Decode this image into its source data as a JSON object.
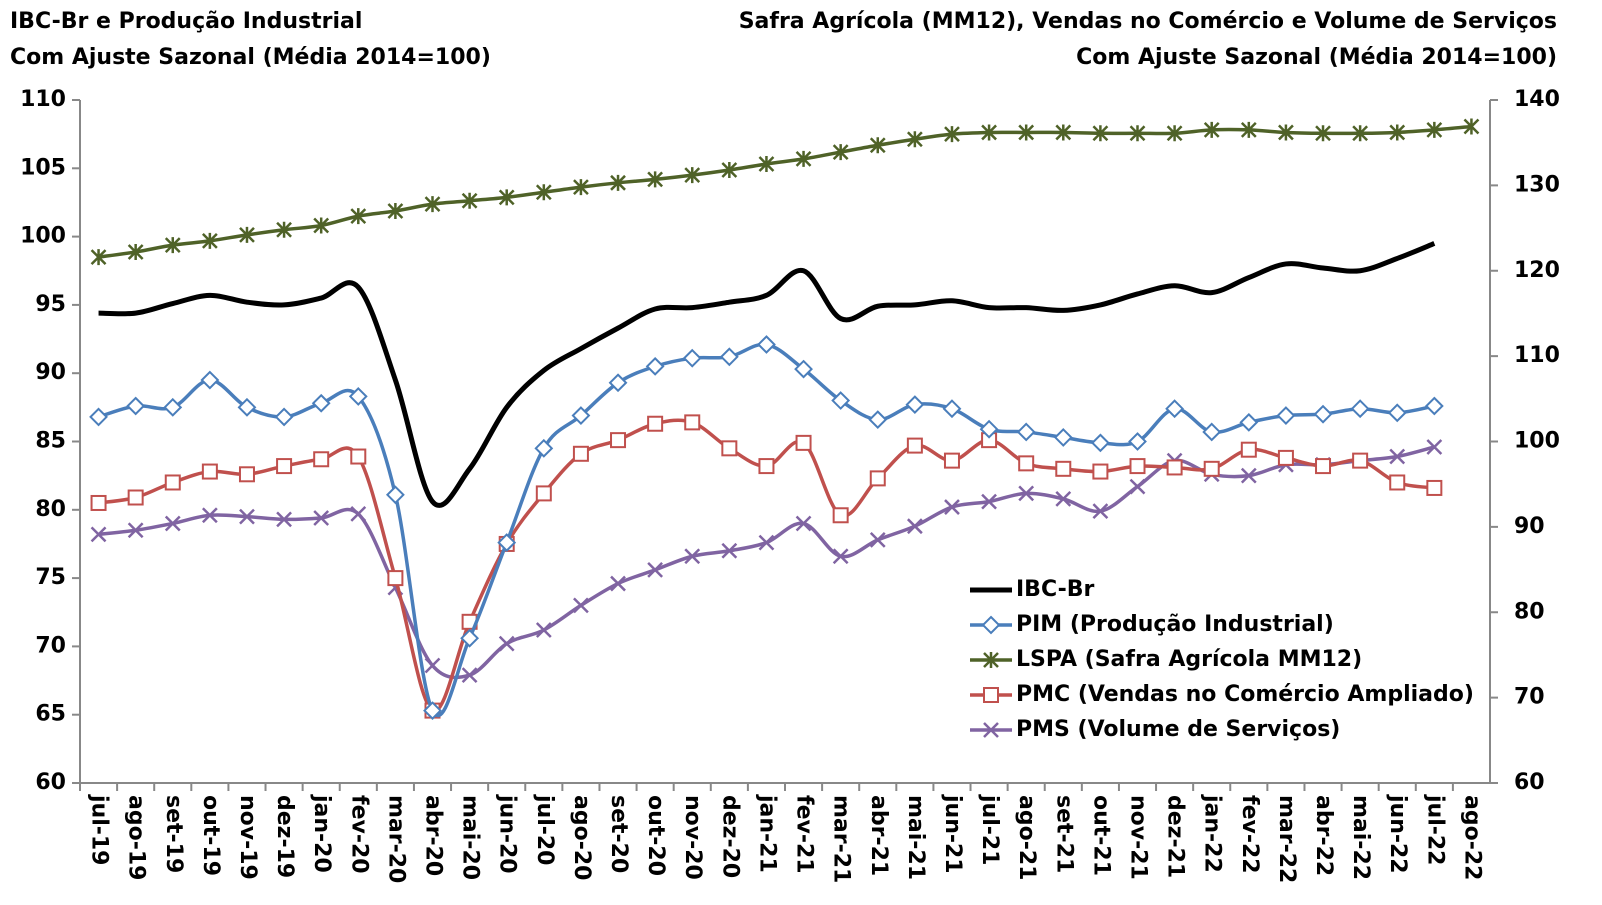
{
  "chart_data": {
    "type": "line",
    "titles_left": [
      "IBC-Br e Produção Industrial",
      "Com Ajuste Sazonal (Média 2014=100)"
    ],
    "titles_right": [
      "Safra Agrícola (MM12), Vendas no Comércio e Volume de Serviços",
      "Com Ajuste Sazonal (Média 2014=100)"
    ],
    "categories": [
      "jul-19",
      "ago-19",
      "set-19",
      "out-19",
      "nov-19",
      "dez-19",
      "jan-20",
      "fev-20",
      "mar-20",
      "abr-20",
      "mai-20",
      "jun-20",
      "jul-20",
      "ago-20",
      "set-20",
      "out-20",
      "nov-20",
      "dez-20",
      "jan-21",
      "fev-21",
      "mar-21",
      "abr-21",
      "mai-21",
      "jun-21",
      "jul-21",
      "ago-21",
      "set-21",
      "out-21",
      "nov-21",
      "dez-21",
      "jan-22",
      "fev-22",
      "mar-22",
      "abr-22",
      "mai-22",
      "jun-22",
      "jul-22",
      "ago-22"
    ],
    "ylim": [
      60,
      110
    ],
    "yticks": [
      60,
      65,
      70,
      75,
      80,
      85,
      90,
      95,
      100,
      105,
      110
    ],
    "y2lim": [
      60,
      140
    ],
    "y2ticks": [
      60,
      70,
      80,
      90,
      100,
      110,
      120,
      130,
      140
    ],
    "legend": "lower right",
    "series": [
      {
        "name": "IBC-Br",
        "color": "#000000",
        "marker": "none",
        "values": [
          94.4,
          94.4,
          95.1,
          95.7,
          95.2,
          95.0,
          95.5,
          96.3,
          89.5,
          80.6,
          83.0,
          87.5,
          90.2,
          91.8,
          93.3,
          94.7,
          94.8,
          95.2,
          95.7,
          97.5,
          94.0,
          94.9,
          95.0,
          95.3,
          94.8,
          94.8,
          94.6,
          95.0,
          95.8,
          96.4,
          95.9,
          97.0,
          98.0,
          97.7,
          97.5,
          98.4,
          99.5,
          null
        ]
      },
      {
        "name": "PIM (Produção Industrial)",
        "color": "#4a7ebb",
        "marker": "diamond",
        "values": [
          86.8,
          87.6,
          87.5,
          89.5,
          87.5,
          86.8,
          87.8,
          88.3,
          81.1,
          65.3,
          70.6,
          77.6,
          84.5,
          86.9,
          89.3,
          90.5,
          91.1,
          91.2,
          92.1,
          90.3,
          88.0,
          86.6,
          87.7,
          87.4,
          85.9,
          85.7,
          85.3,
          84.9,
          85.0,
          87.4,
          85.7,
          86.4,
          86.9,
          87.0,
          87.4,
          87.1,
          87.6,
          null
        ]
      },
      {
        "name": "LSPA (Safra Agrícola MM12)",
        "color": "#4f6228",
        "marker": "star",
        "axis": "y2",
        "values": [
          121.6,
          122.2,
          123.0,
          123.5,
          124.2,
          124.8,
          125.3,
          126.4,
          127.0,
          127.8,
          128.2,
          128.6,
          129.2,
          129.8,
          130.3,
          130.7,
          131.2,
          131.8,
          132.5,
          133.1,
          133.9,
          134.7,
          135.4,
          136.0,
          136.2,
          136.2,
          136.2,
          136.1,
          136.1,
          136.1,
          136.5,
          136.5,
          136.2,
          136.1,
          136.1,
          136.2,
          136.5,
          136.9
        ]
      },
      {
        "name": "PMC (Vendas no Comércio Ampliado)",
        "color": "#c0504d",
        "marker": "square",
        "values": [
          80.5,
          80.9,
          82.0,
          82.8,
          82.6,
          83.2,
          83.7,
          83.9,
          75.0,
          65.3,
          71.8,
          77.5,
          81.2,
          84.1,
          85.1,
          86.3,
          86.4,
          84.5,
          83.2,
          84.9,
          79.6,
          82.3,
          84.7,
          83.6,
          85.1,
          83.4,
          83.0,
          82.8,
          83.2,
          83.1,
          83.0,
          84.4,
          83.8,
          83.2,
          83.6,
          82.0,
          81.6,
          null
        ]
      },
      {
        "name": "PMS (Volume de Serviços)",
        "color": "#8064a2",
        "marker": "x",
        "values": [
          78.2,
          78.5,
          79.0,
          79.6,
          79.5,
          79.3,
          79.4,
          79.7,
          74.3,
          68.6,
          67.9,
          70.2,
          71.2,
          73.0,
          74.6,
          75.6,
          76.6,
          77.0,
          77.6,
          79.0,
          76.6,
          77.8,
          78.8,
          80.2,
          80.6,
          81.2,
          80.8,
          79.9,
          81.7,
          83.6,
          82.6,
          82.5,
          83.3,
          83.3,
          83.6,
          83.9,
          84.6,
          null
        ]
      }
    ]
  }
}
